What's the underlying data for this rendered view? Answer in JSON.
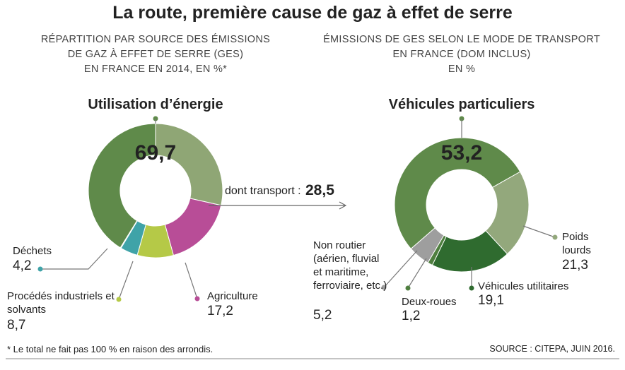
{
  "title": "La route, première cause de gaz à effet de serre",
  "footnote": "* Le total ne fait pas 100 % en raison des arrondis.",
  "source": "SOURCE :  CITEPA, JUIN 2016.",
  "chart_data": [
    {
      "type": "donut",
      "subtitle": [
        "RÉPARTITION PAR SOURCE DES ÉMISSIONS",
        "DE GAZ À EFFET DE SERRE (GES)",
        "EN FRANCE EN 2014, EN %*"
      ],
      "categories": [
        "Utilisation d’énergie",
        "Agriculture",
        "Procédés industriels et solvants",
        "Déchets"
      ],
      "values": [
        69.7,
        17.2,
        8.7,
        4.2
      ],
      "value_labels": [
        "69,7",
        "17,2",
        "8,7",
        "4,2"
      ],
      "colors": [
        "#5f8a4a",
        "#b84d97",
        "#b5c947",
        "#3fa3a8"
      ],
      "annotation": {
        "text": "dont transport :",
        "value": 28.5,
        "value_label": "28,5",
        "color": "#8fa675"
      }
    },
    {
      "type": "donut",
      "subtitle": [
        "ÉMISSIONS DE GES SELON LE MODE DE TRANSPORT",
        "EN FRANCE (DOM INCLUS)",
        "EN %"
      ],
      "categories": [
        "Véhicules particuliers",
        "Poids lourds",
        "Véhicules utilitaires",
        "Deux-roues",
        "Non routier (aérien, fluvial et maritime, ferroviaire, etc.)"
      ],
      "values": [
        53.2,
        21.3,
        19.1,
        1.2,
        5.2
      ],
      "value_labels": [
        "53,2",
        "21,3",
        "19,1",
        "1,2",
        "5,2"
      ],
      "colors": [
        "#5f8a4a",
        "#93a87c",
        "#2f6b2f",
        "#4f7f3f",
        "#9e9e9e"
      ]
    }
  ]
}
